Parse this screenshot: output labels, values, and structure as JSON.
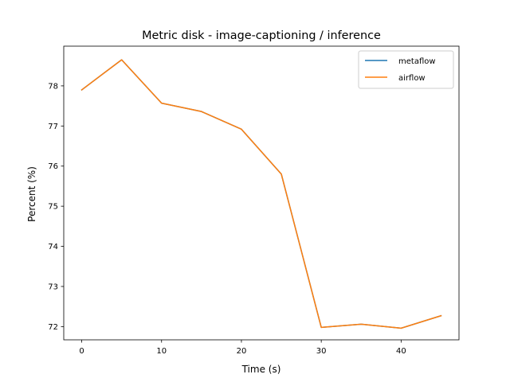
{
  "chart_data": {
    "type": "line",
    "title": "Metric disk - image-captioning / inference",
    "xlabel": "Time (s)",
    "ylabel": "Percent (%)",
    "xlim": [
      -2.25,
      47.25
    ],
    "ylim": [
      71.67,
      78.99
    ],
    "xticks": [
      0,
      10,
      20,
      30,
      40
    ],
    "yticks": [
      72,
      73,
      74,
      75,
      76,
      77,
      78
    ],
    "grid": false,
    "legend_position": "top-right",
    "series": [
      {
        "name": "metaflow",
        "color": "#1f77b4",
        "x": [
          0,
          5,
          10,
          15,
          20,
          25,
          30,
          35,
          40,
          45
        ],
        "y": [
          77.9,
          78.65,
          77.57,
          77.36,
          76.92,
          75.8,
          71.98,
          72.06,
          71.96,
          72.27
        ]
      },
      {
        "name": "airflow",
        "color": "#ff7f0e",
        "x": [
          0,
          5,
          10,
          15,
          20,
          25,
          30,
          35,
          40,
          45
        ],
        "y": [
          77.9,
          78.65,
          77.57,
          77.36,
          76.92,
          75.8,
          71.98,
          72.06,
          71.96,
          72.27
        ]
      }
    ]
  }
}
